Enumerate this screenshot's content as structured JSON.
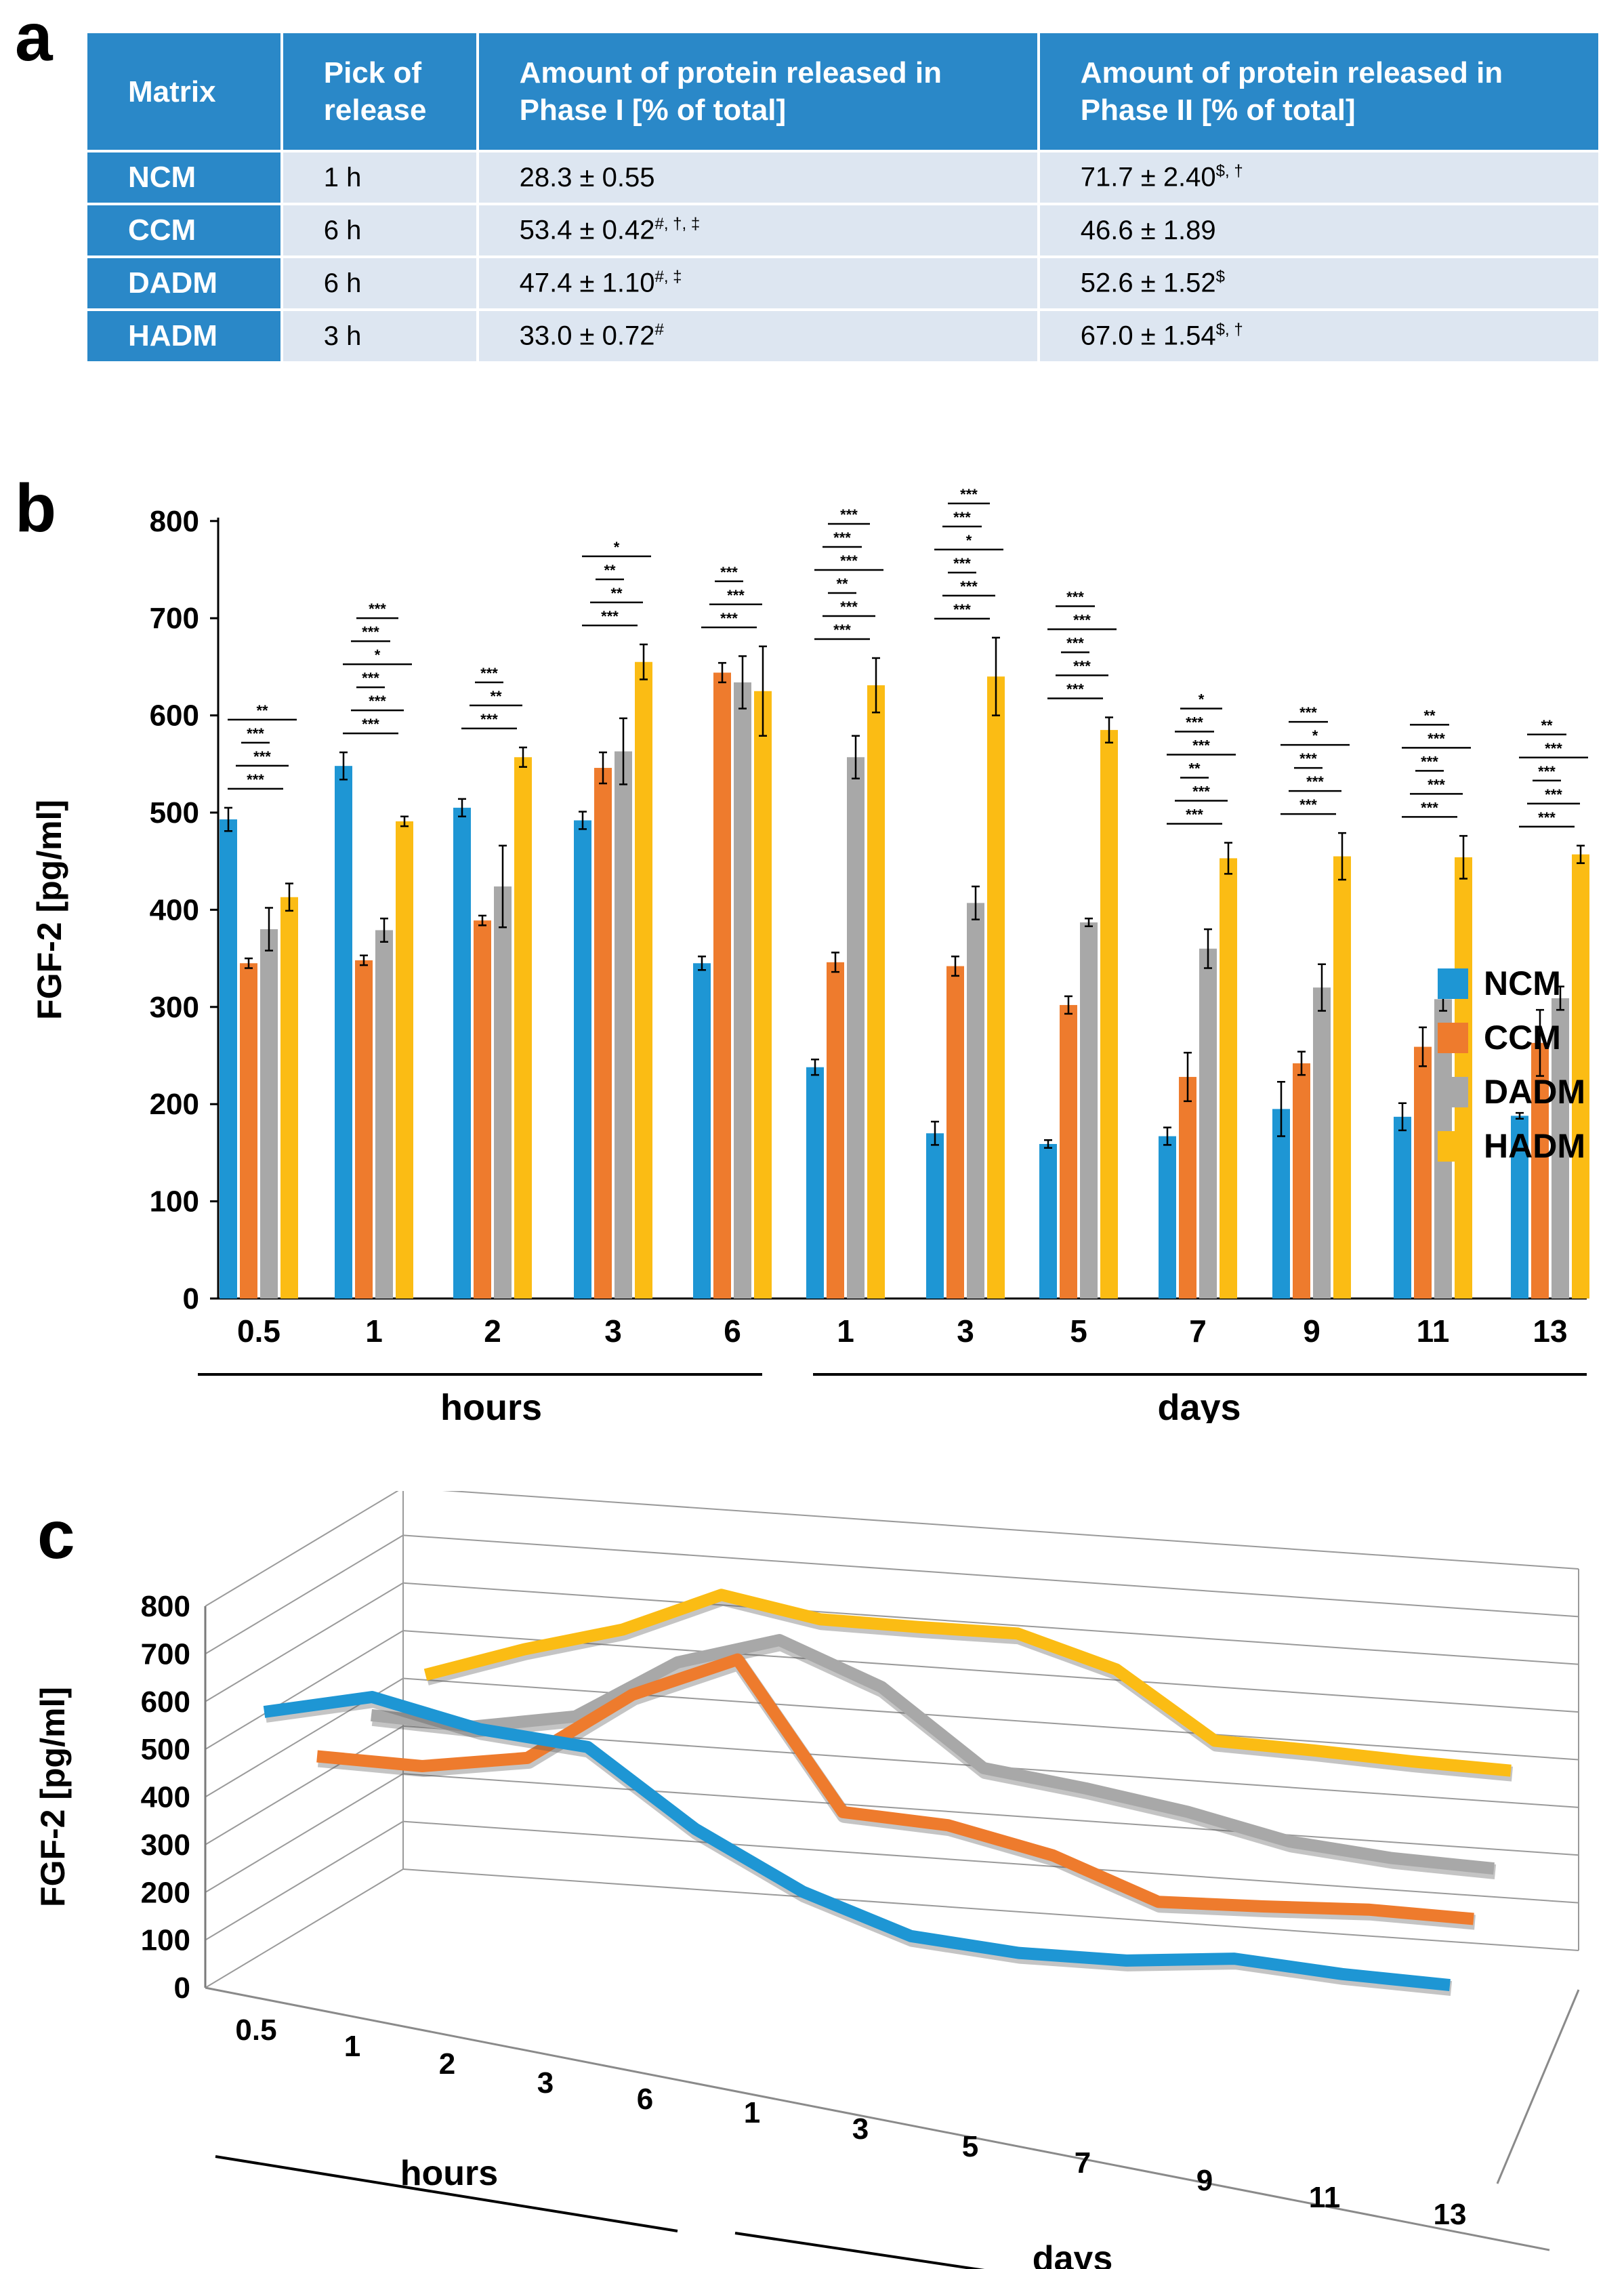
{
  "panel_labels": {
    "a": "a",
    "b": "b",
    "c": "c"
  },
  "table": {
    "headers": [
      "Matrix",
      "Pick of release",
      "Amount of protein released in Phase I [% of total]",
      "Amount of protein released in Phase II [% of total]"
    ],
    "rows": [
      {
        "matrix": "NCM",
        "pick": "1 h",
        "phase1": "28.3 ± 0.55",
        "phase1_sup": "",
        "phase2": "71.7 ± 2.40",
        "phase2_sup": "$, †"
      },
      {
        "matrix": "CCM",
        "pick": "6 h",
        "phase1": "53.4 ± 0.42",
        "phase1_sup": "#, †, ‡",
        "phase2": "46.6 ± 1.89",
        "phase2_sup": ""
      },
      {
        "matrix": "DADM",
        "pick": "6 h",
        "phase1": "47.4 ± 1.10",
        "phase1_sup": "#, ‡",
        "phase2": "52.6 ± 1.52",
        "phase2_sup": "$"
      },
      {
        "matrix": "HADM",
        "pick": "3 h",
        "phase1": "33.0 ± 0.72",
        "phase1_sup": "#",
        "phase2": "67.0 ± 1.54",
        "phase2_sup": "$, †"
      }
    ]
  },
  "colors": {
    "NCM": "#1e96d4",
    "CCM": "#ee7b2d",
    "DADM": "#a8a8a8",
    "HADM": "#fbbc14",
    "table_head": "#2a88c8",
    "table_row": "#dde6f1"
  },
  "chart_data": [
    {
      "type": "bar",
      "panel": "b",
      "categories": [
        "0.5",
        "1",
        "2",
        "3",
        "6",
        "1",
        "3",
        "5",
        "7",
        "9",
        "11",
        "13"
      ],
      "groups": [
        {
          "label": "hours",
          "from": 0,
          "to": 4
        },
        {
          "label": "days",
          "from": 5,
          "to": 11
        }
      ],
      "ylabel": "FGF-2 [pg/ml]",
      "ylim": [
        0,
        800
      ],
      "yticks": [
        "0",
        "100",
        "200",
        "300",
        "400",
        "500",
        "600",
        "700",
        "800"
      ],
      "legend": [
        "NCM",
        "CCM",
        "DADM",
        "HADM"
      ],
      "series": [
        {
          "name": "NCM",
          "values": [
            493,
            548,
            505,
            492,
            345,
            238,
            170,
            159,
            167,
            195,
            187,
            188
          ],
          "errors": [
            12,
            14,
            9,
            9,
            7,
            8,
            12,
            4,
            9,
            28,
            14,
            3
          ]
        },
        {
          "name": "CCM",
          "values": [
            345,
            348,
            389,
            546,
            644,
            346,
            342,
            302,
            228,
            242,
            259,
            263
          ],
          "errors": [
            5,
            5,
            5,
            16,
            10,
            10,
            10,
            9,
            25,
            12,
            20,
            34
          ]
        },
        {
          "name": "DADM",
          "values": [
            380,
            379,
            424,
            563,
            634,
            557,
            407,
            387,
            360,
            320,
            308,
            309
          ],
          "errors": [
            22,
            12,
            42,
            34,
            27,
            22,
            17,
            4,
            20,
            24,
            12,
            12
          ]
        },
        {
          "name": "HADM",
          "values": [
            413,
            491,
            557,
            655,
            625,
            631,
            640,
            585,
            453,
            455,
            454,
            457
          ],
          "errors": [
            14,
            5,
            10,
            18,
            46,
            28,
            40,
            13,
            16,
            24,
            22,
            9
          ]
        }
      ],
      "significance": [
        [
          "***",
          "***",
          "***",
          "**"
        ],
        [
          "***",
          "***",
          "***",
          "*",
          "***",
          "***"
        ],
        [
          "***",
          "**",
          "***"
        ],
        [
          "***",
          "**",
          "**",
          "*"
        ],
        [
          "***",
          "***",
          "***"
        ],
        [
          "***",
          "***",
          "**",
          "***",
          "***",
          "***"
        ],
        [
          "***",
          "***",
          "***",
          "*",
          "***",
          "***"
        ],
        [
          "***",
          "***",
          "***",
          "***",
          "***"
        ],
        [
          "***",
          "***",
          "**",
          "***",
          "***",
          "*"
        ],
        [
          "***",
          "***",
          "***",
          "*",
          "***"
        ],
        [
          "***",
          "***",
          "***",
          "***",
          "**"
        ],
        [
          "***",
          "***",
          "***",
          "***",
          "**"
        ]
      ]
    },
    {
      "type": "line",
      "panel": "c",
      "style": "3d-ribbon",
      "categories": [
        "0.5",
        "1",
        "2",
        "3",
        "6",
        "1",
        "3",
        "5",
        "7",
        "9",
        "11",
        "13"
      ],
      "groups": [
        {
          "label": "hours"
        },
        {
          "label": "days"
        }
      ],
      "ylabel": "FGF-2 [pg/ml]",
      "ylim": [
        0,
        800
      ],
      "yticks": [
        "0",
        "100",
        "200",
        "300",
        "400",
        "500",
        "600",
        "700",
        "800"
      ],
      "series": [
        {
          "name": "NCM",
          "values": [
            493,
            548,
            505,
            492,
            345,
            238,
            170,
            159,
            167,
            195,
            187,
            188
          ]
        },
        {
          "name": "CCM",
          "values": [
            345,
            348,
            389,
            546,
            644,
            346,
            342,
            302,
            228,
            242,
            259,
            263
          ]
        },
        {
          "name": "DADM",
          "values": [
            380,
            379,
            424,
            563,
            634,
            557,
            407,
            387,
            360,
            320,
            308,
            309
          ]
        },
        {
          "name": "HADM",
          "values": [
            413,
            491,
            557,
            655,
            625,
            631,
            640,
            585,
            453,
            455,
            454,
            457
          ]
        }
      ]
    }
  ]
}
